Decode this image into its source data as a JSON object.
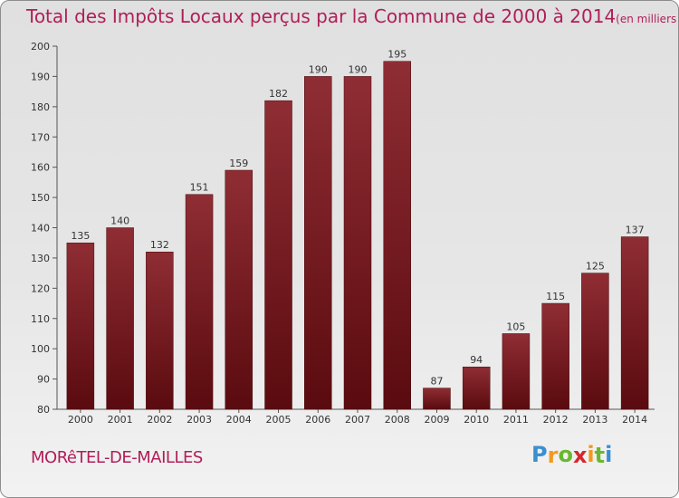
{
  "chart_data": {
    "type": "bar",
    "title": "Total des Impôts Locaux perçus par la Commune de 2000 à 2014",
    "unit_note": "(en milliers d'€)",
    "categories": [
      "2000",
      "2001",
      "2002",
      "2003",
      "2004",
      "2005",
      "2006",
      "2007",
      "2008",
      "2009",
      "2010",
      "2011",
      "2012",
      "2013",
      "2014"
    ],
    "values": [
      135,
      140,
      132,
      151,
      159,
      182,
      190,
      190,
      195,
      87,
      94,
      105,
      115,
      125,
      137
    ],
    "data_labels": [
      "135",
      "140",
      "132",
      "151",
      "159",
      "182",
      "190",
      "190",
      "195",
      "87",
      "94",
      "105",
      "115",
      "125",
      "137"
    ],
    "yticks": [
      80,
      90,
      100,
      110,
      120,
      130,
      140,
      150,
      160,
      170,
      180,
      190,
      200
    ],
    "ylim": [
      80,
      200
    ],
    "xlabel": "",
    "ylabel": "",
    "grid": false,
    "bar_color": "#7a1b20"
  },
  "footer": {
    "commune_name": "MORêTEL-DE-MAILLES",
    "logo_letters": [
      "P",
      "r",
      "o",
      "x",
      "i",
      "t",
      "i"
    ],
    "logo_colors": [
      "#3a8fd0",
      "#f29a1f",
      "#69b82e",
      "#d6262e",
      "#f29a1f",
      "#69b82e",
      "#3a8fd0"
    ]
  }
}
